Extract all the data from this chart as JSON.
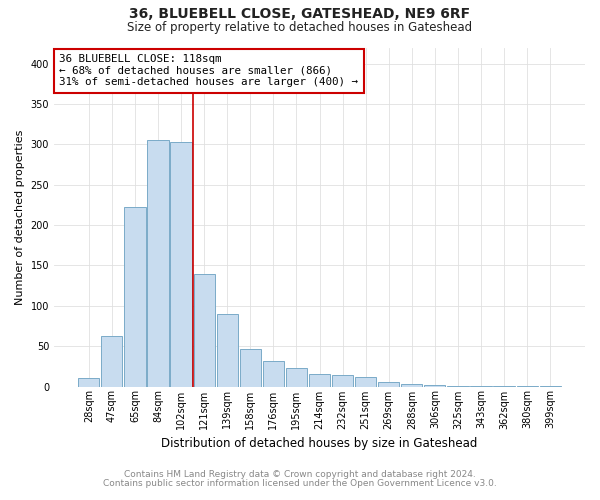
{
  "title": "36, BLUEBELL CLOSE, GATESHEAD, NE9 6RF",
  "subtitle": "Size of property relative to detached houses in Gateshead",
  "xlabel": "Distribution of detached houses by size in Gateshead",
  "ylabel": "Number of detached properties",
  "bin_labels": [
    "28sqm",
    "47sqm",
    "65sqm",
    "84sqm",
    "102sqm",
    "121sqm",
    "139sqm",
    "158sqm",
    "176sqm",
    "195sqm",
    "214sqm",
    "232sqm",
    "251sqm",
    "269sqm",
    "288sqm",
    "306sqm",
    "325sqm",
    "343sqm",
    "362sqm",
    "380sqm",
    "399sqm"
  ],
  "bar_heights": [
    10,
    63,
    222,
    305,
    303,
    140,
    90,
    46,
    31,
    23,
    16,
    14,
    12,
    5,
    3,
    2,
    1,
    1,
    1,
    1,
    1
  ],
  "bar_color": "#c8dcef",
  "bar_edge_color": "#7aaac8",
  "vline_x_idx": 5,
  "vline_color": "#cc0000",
  "annotation_title": "36 BLUEBELL CLOSE: 118sqm",
  "annotation_line1": "← 68% of detached houses are smaller (866)",
  "annotation_line2": "31% of semi-detached houses are larger (400) →",
  "annotation_box_facecolor": "#ffffff",
  "annotation_box_edgecolor": "#cc0000",
  "footer1": "Contains HM Land Registry data © Crown copyright and database right 2024.",
  "footer2": "Contains public sector information licensed under the Open Government Licence v3.0.",
  "ylim": [
    0,
    420
  ],
  "background_color": "#ffffff",
  "grid_color": "#e0e0e0",
  "title_fontsize": 10,
  "subtitle_fontsize": 8.5,
  "ylabel_fontsize": 8,
  "xlabel_fontsize": 8.5,
  "tick_fontsize": 7,
  "footer_fontsize": 6.5,
  "footer_color": "#888888"
}
